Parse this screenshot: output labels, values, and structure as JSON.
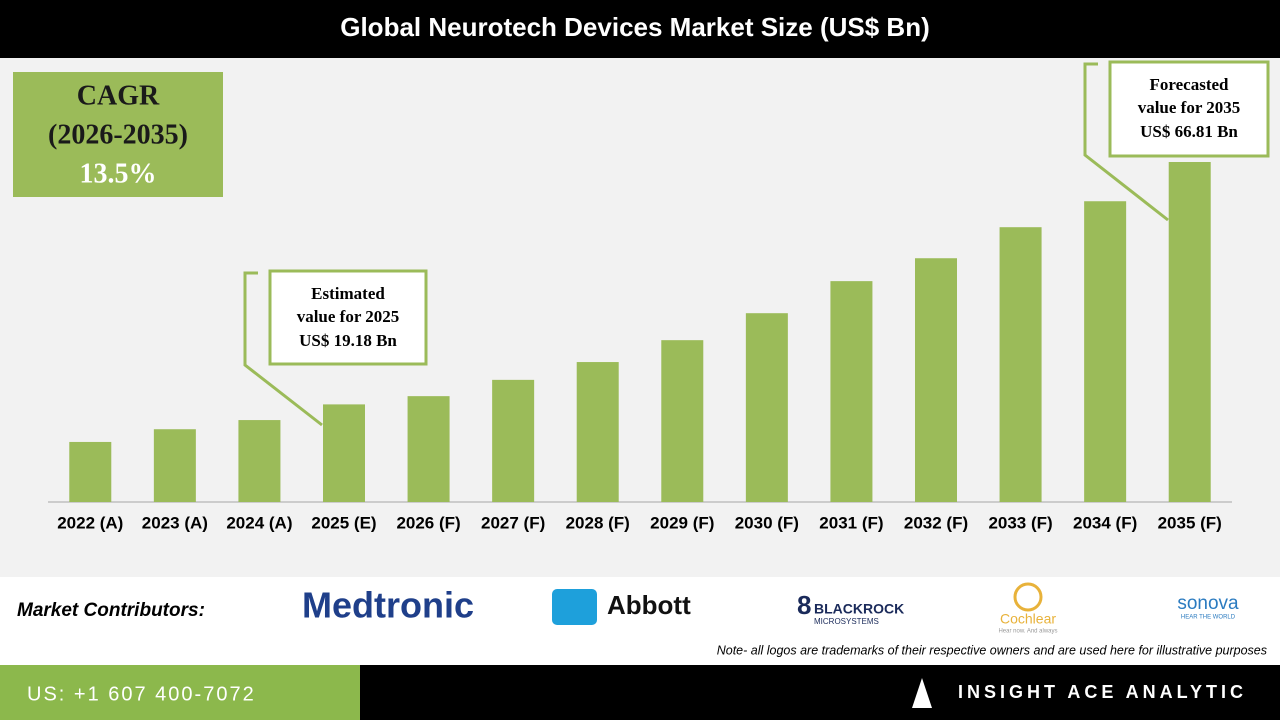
{
  "chart_data": {
    "type": "bar",
    "title": "Global Neurotech Devices Market Size (US$ Bn)",
    "categories": [
      "2022 (A)",
      "2023 (A)",
      "2024 (A)",
      "2025 (E)",
      "2026 (F)",
      "2027 (F)",
      "2028 (F)",
      "2029 (F)",
      "2030 (F)",
      "2031 (F)",
      "2032 (F)",
      "2033 (F)",
      "2034 (F)",
      "2035 (F)"
    ],
    "values": [
      11.8,
      14.3,
      16.1,
      19.18,
      20.8,
      24.0,
      27.5,
      31.8,
      37.1,
      43.4,
      47.9,
      54.0,
      59.1,
      66.81
    ],
    "color": "#9bbb59",
    "cagr": [
      "CAGR",
      "(2026-2035)",
      "13.5%"
    ],
    "annotations": [
      {
        "lines": [
          "Estimated",
          "value for 2025",
          "US$ 19.18 Bn"
        ]
      },
      {
        "lines": [
          "Forecasted",
          "value for 2035",
          "US$ 66.81 Bn"
        ]
      }
    ]
  },
  "footer": {
    "contributors_label": "Market Contributors:",
    "logos": [
      "Medtronic",
      "Abbott",
      "BLACKROCK",
      "MICROSYSTEMS",
      "Cochlear",
      "Hear now. And always",
      "sonova",
      "HEAR THE WORLD"
    ],
    "note": "Note- all logos are trademarks of their respective owners and are used here for illustrative purposes",
    "phone": "US: +1 607 400-7072",
    "brand": "INSIGHT ACE ANALYTIC"
  }
}
